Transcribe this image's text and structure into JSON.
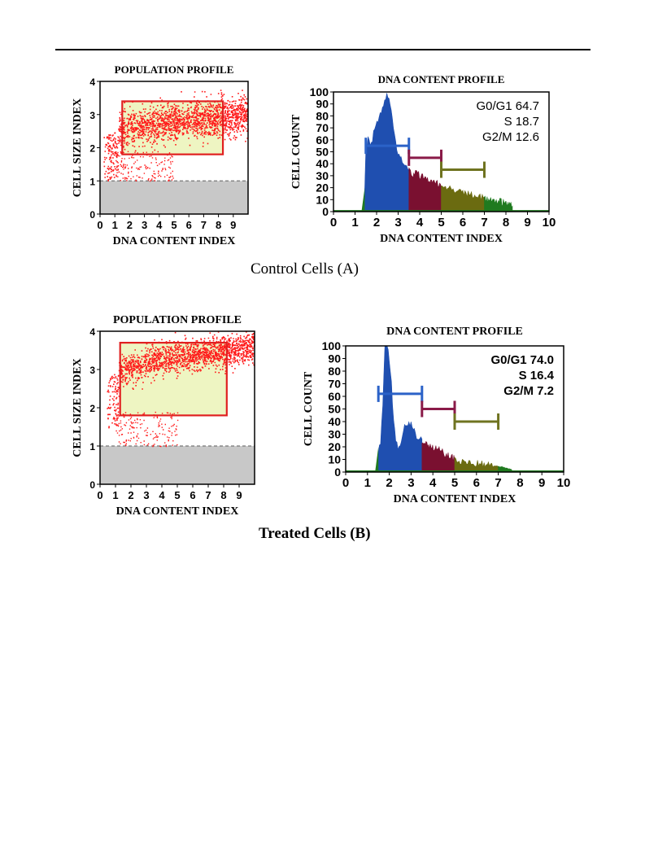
{
  "caption_a": "Control Cells (A)",
  "caption_b": "Treated Cells (B)",
  "colors": {
    "scatter": "#ff1a1a",
    "gate_fill": "#eef5c2",
    "gate_stroke": "#e02020",
    "debris": "#c8c8c8",
    "g0g1": "#1f4fb0",
    "s": "#7a1030",
    "g2m": "#6b6b10",
    "tail": "#1f7a1f",
    "marker_g0g1": "#2b62c8",
    "marker_s": "#8a1a48",
    "marker_g2m": "#6f7320"
  },
  "chart_data": [
    {
      "id": "control-scatter",
      "type": "scatter",
      "title": "POPULATION PROFILE",
      "xlabel": "DNA CONTENT INDEX",
      "ylabel": "CELL SIZE INDEX",
      "xlim": [
        0,
        10
      ],
      "ylim": [
        0,
        4
      ],
      "xticks": [
        "0",
        "1",
        "2",
        "3",
        "4",
        "5",
        "6",
        "7",
        "8",
        "9"
      ],
      "yticks": [
        "0",
        "1",
        "2",
        "3",
        "4"
      ],
      "gate": {
        "x": [
          1.5,
          8.3
        ],
        "y": [
          1.8,
          3.4
        ]
      },
      "debris_threshold": 1.0,
      "cloud": {
        "x_start": 0.2,
        "x_end": 10,
        "y_start": 2.3,
        "y_end": 3.0,
        "spread": 0.28,
        "count": 1800
      }
    },
    {
      "id": "control-histogram",
      "type": "area",
      "title": "DNA CONTENT PROFILE",
      "xlabel": "DNA CONTENT INDEX",
      "ylabel": "CELL COUNT",
      "xlim": [
        0,
        10
      ],
      "ylim": [
        0,
        100
      ],
      "xticks": [
        "0",
        "1",
        "2",
        "3",
        "4",
        "5",
        "6",
        "7",
        "8",
        "9",
        "10"
      ],
      "yticks": [
        "0",
        "10",
        "20",
        "30",
        "40",
        "50",
        "60",
        "70",
        "80",
        "90",
        "100"
      ],
      "phases": [
        {
          "name": "G0/G1",
          "x": [
            1.45,
            3.5
          ]
        },
        {
          "name": "S",
          "x": [
            3.5,
            5.0
          ]
        },
        {
          "name": "G2/M",
          "x": [
            5.0,
            7.0
          ]
        },
        {
          "name": "tail",
          "x": [
            7.0,
            8.3
          ]
        }
      ],
      "markers": [
        {
          "phase": "G0/G1",
          "x": [
            1.5,
            3.5
          ],
          "y": 55
        },
        {
          "phase": "S",
          "x": [
            3.5,
            5.0
          ],
          "y": 45
        },
        {
          "phase": "G2/M",
          "x": [
            5.0,
            7.0
          ],
          "y": 35
        }
      ],
      "curve_x": [
        1.3,
        1.4,
        1.45,
        1.5,
        1.6,
        1.7,
        1.8,
        1.9,
        2.0,
        2.1,
        2.2,
        2.3,
        2.4,
        2.5,
        2.6,
        2.7,
        2.8,
        2.9,
        3.0,
        3.1,
        3.2,
        3.3,
        3.4,
        3.5,
        3.6,
        3.7,
        3.8,
        3.9,
        4.0,
        4.2,
        4.4,
        4.6,
        4.8,
        5.0,
        5.3,
        5.6,
        6.0,
        6.4,
        6.8,
        7.2,
        7.6,
        8.0,
        8.3,
        8.4
      ],
      "curve_y": [
        0,
        5,
        20,
        50,
        60,
        55,
        58,
        70,
        72,
        78,
        82,
        88,
        92,
        100,
        92,
        80,
        68,
        58,
        48,
        45,
        42,
        40,
        38,
        35,
        32,
        30,
        32,
        34,
        30,
        28,
        27,
        25,
        24,
        22,
        20,
        18,
        16,
        14,
        12,
        10,
        9,
        7,
        5,
        0
      ],
      "stats": [
        {
          "label": "G0/G1",
          "value": "64.7"
        },
        {
          "label": "S",
          "value": "18.7"
        },
        {
          "label": "G2/M",
          "value": "12.6"
        }
      ]
    },
    {
      "id": "treated-scatter",
      "type": "scatter",
      "title": "POPULATION PROFILE",
      "xlabel": "DNA CONTENT INDEX",
      "ylabel": "CELL SIZE INDEX",
      "xlim": [
        0,
        10
      ],
      "ylim": [
        0,
        4
      ],
      "xticks": [
        "0",
        "1",
        "2",
        "3",
        "4",
        "5",
        "6",
        "7",
        "8",
        "9"
      ],
      "yticks": [
        "0",
        "1",
        "2",
        "3",
        "4"
      ],
      "gate": {
        "x": [
          1.3,
          8.2
        ],
        "y": [
          1.8,
          3.7
        ]
      },
      "debris_threshold": 1.0,
      "cloud": {
        "x_start": 0.4,
        "x_end": 10,
        "y_start": 2.7,
        "y_end": 3.6,
        "spread": 0.2,
        "count": 1700
      }
    },
    {
      "id": "treated-histogram",
      "type": "area",
      "title": "DNA CONTENT PROFILE",
      "xlabel": "DNA CONTENT INDEX",
      "ylabel": "CELL COUNT",
      "xlim": [
        0,
        10
      ],
      "ylim": [
        0,
        100
      ],
      "xticks": [
        "0",
        "1",
        "2",
        "3",
        "4",
        "5",
        "6",
        "7",
        "8",
        "9",
        "10"
      ],
      "yticks": [
        "0",
        "10",
        "20",
        "30",
        "40",
        "50",
        "60",
        "70",
        "80",
        "90",
        "100"
      ],
      "phases": [
        {
          "name": "G0/G1",
          "x": [
            1.5,
            3.5
          ]
        },
        {
          "name": "S",
          "x": [
            3.5,
            5.0
          ]
        },
        {
          "name": "G2/M",
          "x": [
            5.0,
            7.0
          ]
        },
        {
          "name": "tail",
          "x": [
            7.0,
            7.7
          ]
        }
      ],
      "markers": [
        {
          "phase": "G0/G1",
          "x": [
            1.5,
            3.5
          ],
          "y": 62
        },
        {
          "phase": "S",
          "x": [
            3.5,
            5.0
          ],
          "y": 50
        },
        {
          "phase": "G2/M",
          "x": [
            5.0,
            7.0
          ],
          "y": 40
        }
      ],
      "curve_x": [
        1.3,
        1.4,
        1.5,
        1.6,
        1.7,
        1.8,
        1.85,
        1.9,
        2.0,
        2.1,
        2.2,
        2.3,
        2.4,
        2.5,
        2.6,
        2.7,
        2.8,
        2.9,
        3.0,
        3.1,
        3.2,
        3.3,
        3.4,
        3.5,
        3.6,
        3.8,
        4.0,
        4.2,
        4.4,
        4.6,
        4.8,
        5.0,
        5.3,
        5.6,
        6.0,
        6.4,
        6.8,
        7.2,
        7.6,
        7.7
      ],
      "curve_y": [
        0,
        5,
        15,
        25,
        55,
        100,
        100,
        100,
        90,
        70,
        40,
        25,
        20,
        22,
        30,
        35,
        38,
        40,
        38,
        35,
        30,
        28,
        26,
        25,
        24,
        22,
        20,
        18,
        16,
        14,
        12,
        10,
        9,
        8,
        7,
        6,
        5,
        4,
        2,
        0
      ],
      "stats": [
        {
          "label": "G0/G1",
          "value": "74.0"
        },
        {
          "label": "S",
          "value": "16.4"
        },
        {
          "label": "G2/M",
          "value": "7.2"
        }
      ]
    }
  ]
}
